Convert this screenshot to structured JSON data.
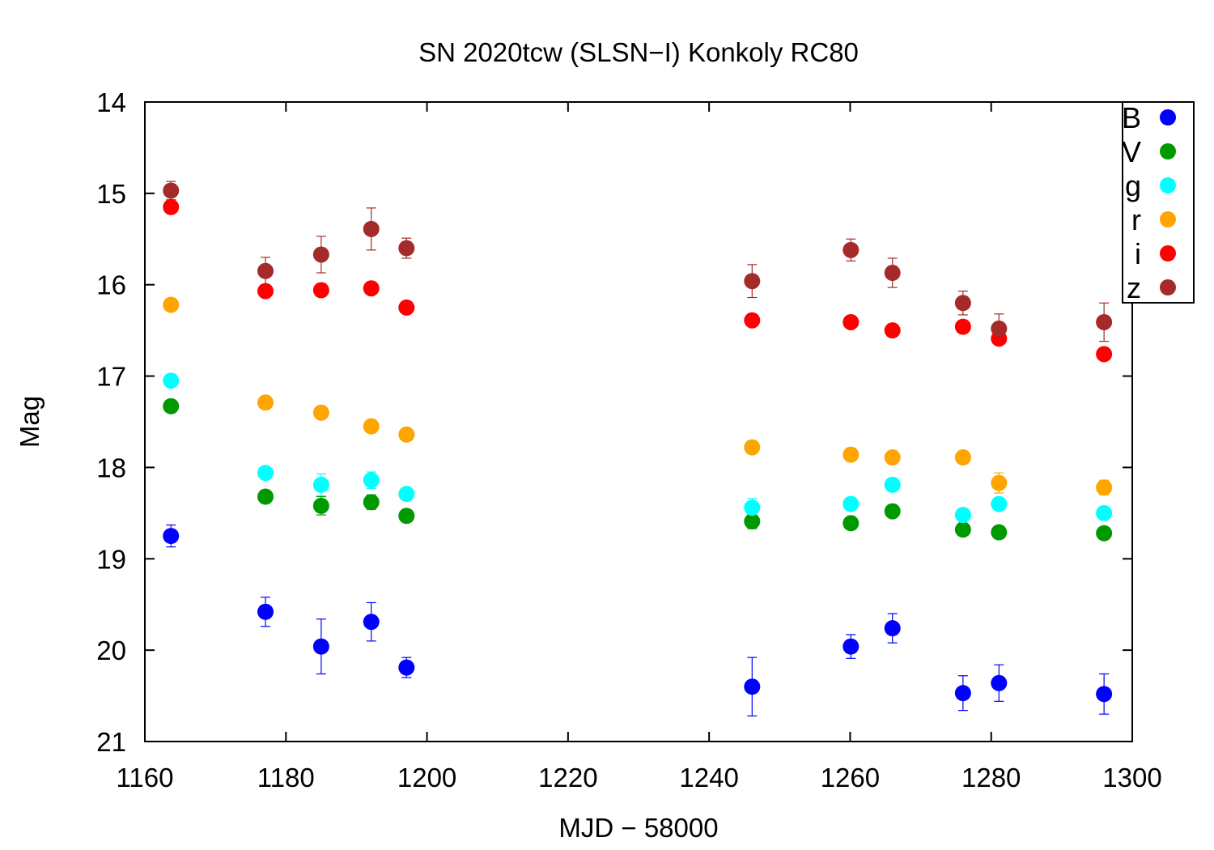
{
  "chart_data": {
    "type": "scatter",
    "title": "SN 2020tcw (SLSN−I) Konkoly RC80",
    "xlabel": "MJD − 58000",
    "ylabel": "Mag",
    "xlim": [
      1160,
      1300
    ],
    "ylim": [
      14,
      21
    ],
    "y_inverted": true,
    "xticks": [
      1160,
      1180,
      1200,
      1220,
      1240,
      1260,
      1280,
      1300
    ],
    "yticks": [
      14,
      15,
      16,
      17,
      18,
      19,
      20,
      21
    ],
    "xtick_labels": [
      "1160",
      "1180",
      "1200",
      "1220",
      "1240",
      "1260",
      "1280",
      "1300"
    ],
    "ytick_labels": [
      "14",
      "15",
      "16",
      "17",
      "18",
      "19",
      "20",
      "21"
    ],
    "grid": false,
    "legend_position": "top-right",
    "error_bars": true,
    "series": [
      {
        "name": "B",
        "color": "#0000ff",
        "x": [
          1163.7,
          1177.1,
          1185.0,
          1192.1,
          1197.1,
          1246.1,
          1260.1,
          1266.0,
          1276.0,
          1281.1,
          1296.0
        ],
        "y": [
          18.75,
          19.58,
          19.96,
          19.69,
          20.19,
          20.4,
          19.96,
          19.76,
          20.47,
          20.36,
          20.48
        ],
        "err": [
          0.12,
          0.16,
          0.3,
          0.21,
          0.11,
          0.32,
          0.13,
          0.16,
          0.19,
          0.2,
          0.22
        ]
      },
      {
        "name": "V",
        "color": "#009900",
        "x": [
          1163.7,
          1177.1,
          1185.0,
          1192.1,
          1197.1,
          1246.1,
          1260.1,
          1266.0,
          1276.0,
          1281.1,
          1296.0
        ],
        "y": [
          17.33,
          18.32,
          18.42,
          18.38,
          18.53,
          18.59,
          18.61,
          18.48,
          18.68,
          18.71,
          18.72
        ],
        "err": [
          0.03,
          0.05,
          0.1,
          0.08,
          0.04,
          0.08,
          0.04,
          0.05,
          0.05,
          0.05,
          0.06
        ]
      },
      {
        "name": "g",
        "color": "#00ffff",
        "x": [
          1163.7,
          1177.1,
          1185.0,
          1192.1,
          1197.1,
          1246.1,
          1260.1,
          1266.0,
          1276.0,
          1281.1,
          1296.0
        ],
        "y": [
          17.05,
          18.06,
          18.19,
          18.14,
          18.29,
          18.44,
          18.4,
          18.19,
          18.52,
          18.4,
          18.5
        ],
        "err": [
          0.03,
          0.04,
          0.12,
          0.09,
          0.04,
          0.1,
          0.04,
          0.05,
          0.05,
          0.05,
          0.06
        ]
      },
      {
        "name": "r",
        "color": "#ffa500",
        "x": [
          1163.7,
          1177.1,
          1185.0,
          1192.1,
          1197.1,
          1246.1,
          1260.1,
          1266.0,
          1276.0,
          1281.1,
          1296.0
        ],
        "y": [
          16.22,
          17.29,
          17.4,
          17.55,
          17.64,
          17.78,
          17.86,
          17.89,
          17.89,
          18.17,
          18.22
        ],
        "err": [
          0.03,
          0.03,
          0.05,
          0.06,
          0.03,
          0.04,
          0.03,
          0.04,
          0.03,
          0.11,
          0.08
        ]
      },
      {
        "name": "i",
        "color": "#ff0000",
        "x": [
          1163.7,
          1177.1,
          1185.0,
          1192.1,
          1197.1,
          1246.1,
          1260.1,
          1266.0,
          1276.0,
          1281.1,
          1296.0
        ],
        "y": [
          15.15,
          16.07,
          16.06,
          16.04,
          16.25,
          16.39,
          16.41,
          16.5,
          16.46,
          16.59,
          16.76
        ],
        "err": [
          0.03,
          0.04,
          0.07,
          0.06,
          0.03,
          0.04,
          0.03,
          0.04,
          0.03,
          0.04,
          0.05
        ]
      },
      {
        "name": "z",
        "color": "#a52a2a",
        "x": [
          1163.7,
          1177.1,
          1185.0,
          1192.1,
          1197.1,
          1246.1,
          1260.1,
          1266.0,
          1276.0,
          1281.1,
          1296.0
        ],
        "y": [
          14.97,
          15.85,
          15.67,
          15.39,
          15.6,
          15.96,
          15.62,
          15.87,
          16.2,
          16.48,
          16.41
        ],
        "err": [
          0.1,
          0.15,
          0.2,
          0.23,
          0.11,
          0.18,
          0.12,
          0.16,
          0.13,
          0.16,
          0.21
        ]
      }
    ]
  }
}
